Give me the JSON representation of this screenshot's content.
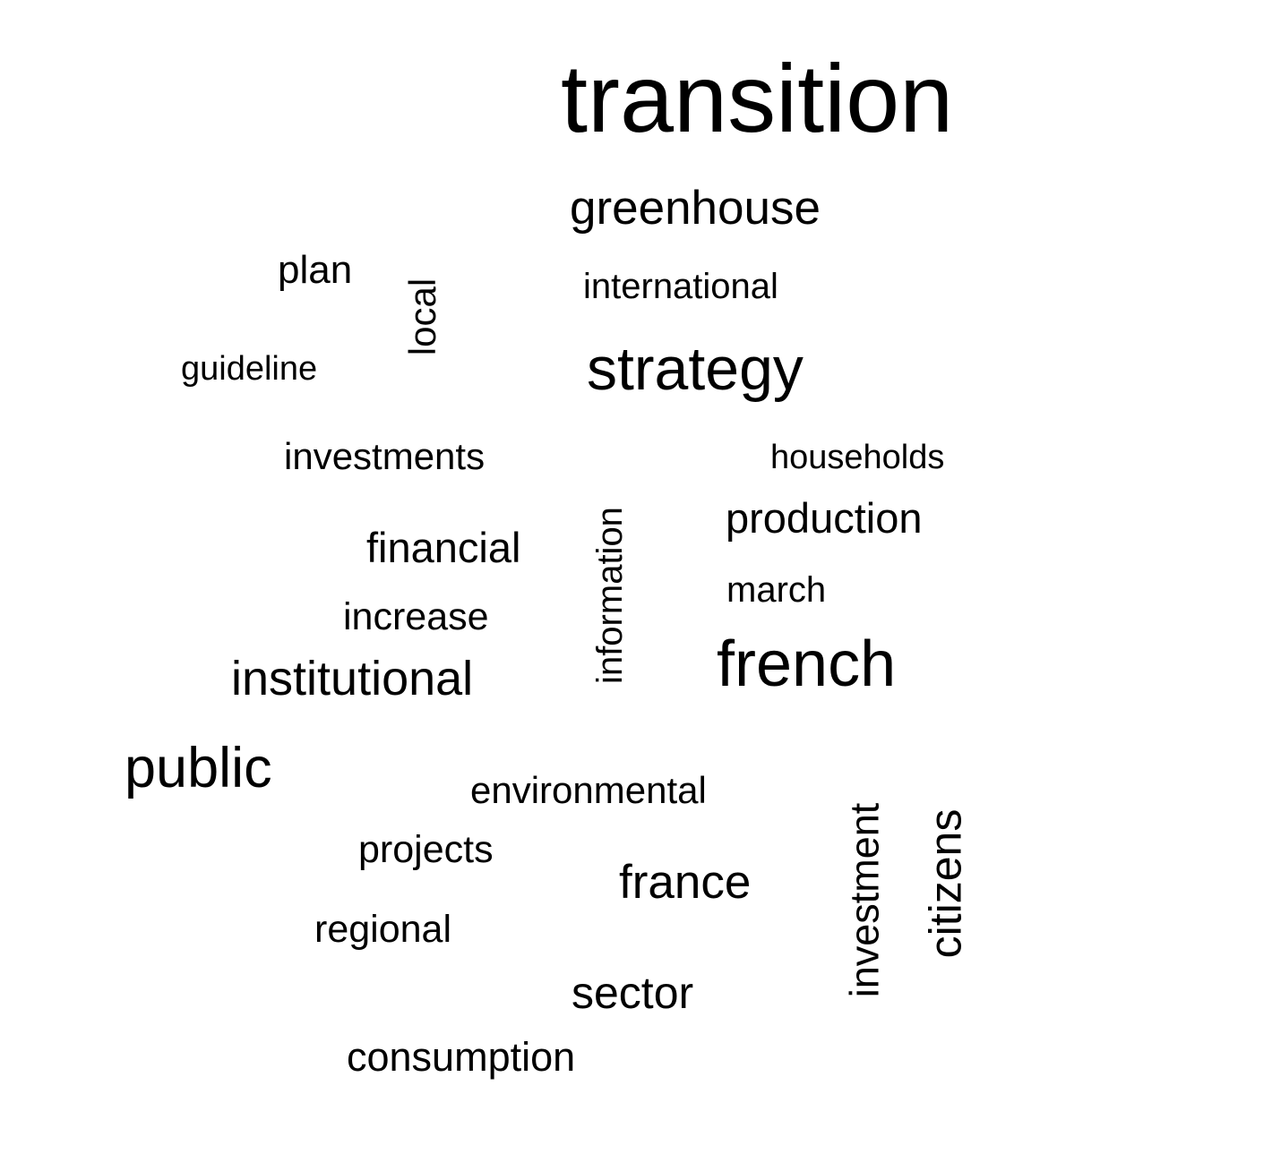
{
  "words": {
    "transition": "transition",
    "greenhouse": "greenhouse",
    "plan": "plan",
    "international": "international",
    "local": "local",
    "guideline": "guideline",
    "strategy": "strategy",
    "investments": "investments",
    "households": "households",
    "production": "production",
    "financial": "financial",
    "information": "information",
    "march": "march",
    "increase": "increase",
    "institutional": "institutional",
    "french": "french",
    "public": "public",
    "environmental": "environmental",
    "investment": "investment",
    "citizens": "citizens",
    "projects": "projects",
    "france": "france",
    "regional": "regional",
    "sector": "sector",
    "consumption": "consumption"
  },
  "colors": {
    "text": "#000000",
    "background": "#ffffff"
  }
}
